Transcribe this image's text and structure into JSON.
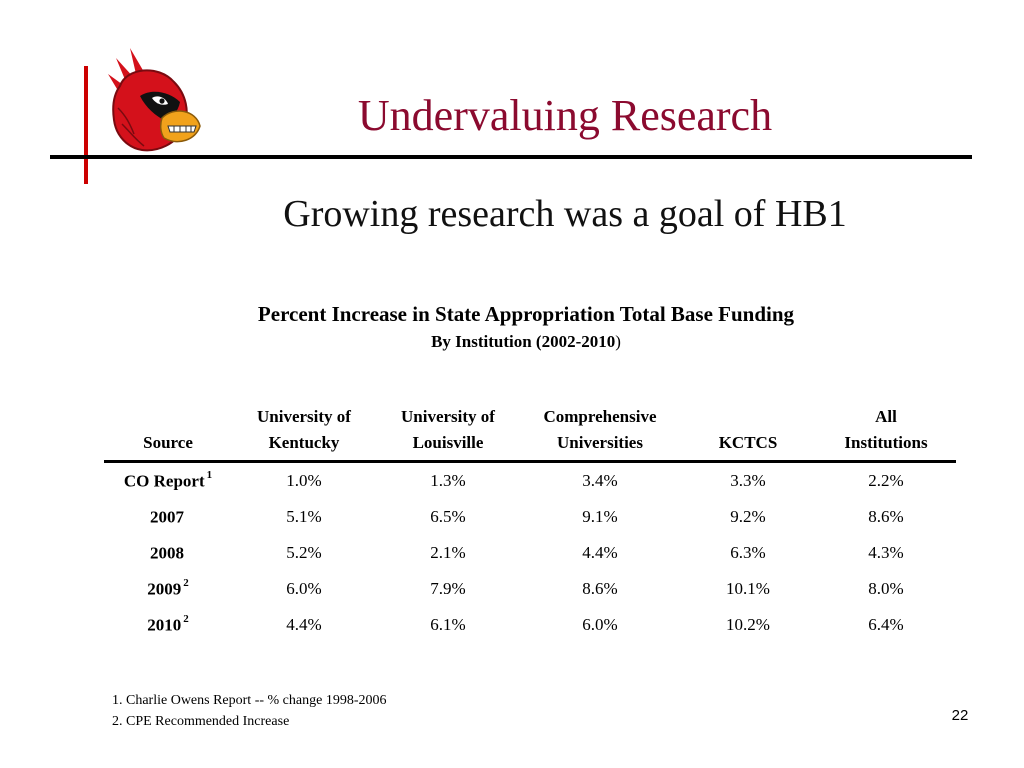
{
  "slide": {
    "title": "Undervaluing Research",
    "subtitle": "Growing research was a goal of HB1",
    "page_number": "22"
  },
  "table": {
    "title": "Percent Increase in State Appropriation Total Base Funding",
    "subtitle": "By Institution (2002-2010",
    "subtitle_close": ")",
    "headers": {
      "source": "Source",
      "uk_line1": "University of",
      "uk_line2": "Kentucky",
      "ul_line1": "University of",
      "ul_line2": "Louisville",
      "comp_line1": "Comprehensive",
      "comp_line2": "Universities",
      "kctcs": "KCTCS",
      "all_line1": "All",
      "all_line2": "Institutions"
    },
    "rows": [
      {
        "source": "CO Report",
        "note": "1",
        "uk": "1.0%",
        "ul": "1.3%",
        "comp": "3.4%",
        "kctcs": "3.3%",
        "all": "2.2%"
      },
      {
        "source": "2007",
        "note": "",
        "uk": "5.1%",
        "ul": "6.5%",
        "comp": "9.1%",
        "kctcs": "9.2%",
        "all": "8.6%"
      },
      {
        "source": "2008",
        "note": "",
        "uk": "5.2%",
        "ul": "2.1%",
        "comp": "4.4%",
        "kctcs": "6.3%",
        "all": "4.3%"
      },
      {
        "source": "2009",
        "note": "2",
        "uk": "6.0%",
        "ul": "7.9%",
        "comp": "8.6%",
        "kctcs": "10.1%",
        "all": "8.0%"
      },
      {
        "source": "2010",
        "note": "2",
        "uk": "4.4%",
        "ul": "6.1%",
        "comp": "6.0%",
        "kctcs": "10.2%",
        "all": "6.4%"
      }
    ]
  },
  "footnotes": [
    "1. Charlie Owens Report -- % change 1998-2006",
    "2. CPE Recommended Increase"
  ],
  "icons": {
    "logo": "cardinal-bird-logo-icon"
  },
  "colors": {
    "title": "#8b0a2f",
    "accent_bar": "#cc0000",
    "logo_red": "#d4111b"
  }
}
